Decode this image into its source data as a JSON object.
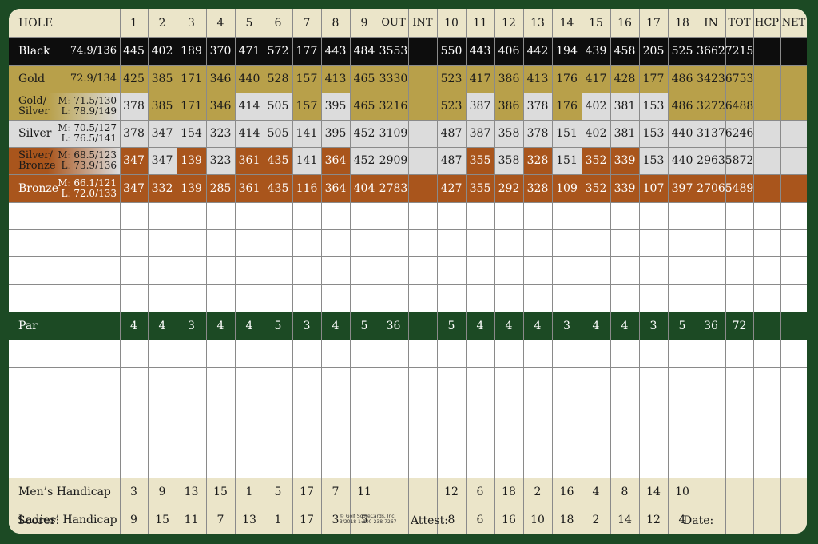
{
  "header": {
    "hole_label": "HOLE",
    "columns": [
      "1",
      "2",
      "3",
      "4",
      "5",
      "6",
      "7",
      "8",
      "9",
      "OUT",
      "INT",
      "10",
      "11",
      "12",
      "13",
      "14",
      "15",
      "16",
      "17",
      "18",
      "IN",
      "TOT",
      "HCP",
      "NET"
    ]
  },
  "colors": {
    "black": "#0d0d0d",
    "gold": "#b8a04a",
    "silver": "#dcdcdc",
    "bronze": "#a9551c",
    "green": "#1c4a24",
    "beige": "#ebe5c9",
    "cream": "#f4f0dc"
  },
  "tees": [
    {
      "name": "Black",
      "rating1": "74.9/136",
      "rating2": "",
      "scheme": "black",
      "values": [
        "445",
        "402",
        "189",
        "370",
        "471",
        "572",
        "177",
        "443",
        "484",
        "3553",
        "",
        "550",
        "443",
        "406",
        "442",
        "194",
        "439",
        "458",
        "205",
        "525",
        "3662",
        "7215",
        "",
        ""
      ]
    },
    {
      "name": "Gold",
      "rating1": "72.9/134",
      "rating2": "",
      "scheme": "gold",
      "values": [
        "425",
        "385",
        "171",
        "346",
        "440",
        "528",
        "157",
        "413",
        "465",
        "3330",
        "",
        "523",
        "417",
        "386",
        "413",
        "176",
        "417",
        "428",
        "177",
        "486",
        "3423",
        "6753",
        "",
        ""
      ]
    },
    {
      "name": "Gold/",
      "name2": "Silver",
      "rating1": "M: 71.5/130",
      "rating2": "L: 78.9/149",
      "scheme": "gold-silver",
      "values": [
        "378",
        "385",
        "171",
        "346",
        "414",
        "505",
        "157",
        "395",
        "465",
        "3216",
        "",
        "523",
        "387",
        "386",
        "378",
        "176",
        "402",
        "381",
        "153",
        "486",
        "3272",
        "6488",
        "",
        ""
      ],
      "cellColors": [
        "s",
        "g",
        "g",
        "g",
        "s",
        "s",
        "g",
        "s",
        "g",
        "g",
        "g",
        "g",
        "s",
        "g",
        "s",
        "g",
        "s",
        "s",
        "s",
        "g",
        "g",
        "g",
        "g",
        "g"
      ]
    },
    {
      "name": "Silver",
      "rating1": "M: 70.5/127",
      "rating2": "L: 76.5/141",
      "scheme": "silver",
      "values": [
        "378",
        "347",
        "154",
        "323",
        "414",
        "505",
        "141",
        "395",
        "452",
        "3109",
        "",
        "487",
        "387",
        "358",
        "378",
        "151",
        "402",
        "381",
        "153",
        "440",
        "3137",
        "6246",
        "",
        ""
      ]
    },
    {
      "name": "Silver/",
      "name2": "Bronze",
      "rating1": "M: 68.5/123",
      "rating2": "L: 73.9/136",
      "scheme": "silver-bronze",
      "values": [
        "347",
        "347",
        "139",
        "323",
        "361",
        "435",
        "141",
        "364",
        "452",
        "2909",
        "",
        "487",
        "355",
        "358",
        "328",
        "151",
        "352",
        "339",
        "153",
        "440",
        "2963",
        "5872",
        "",
        ""
      ],
      "cellColors": [
        "b",
        "s",
        "b",
        "s",
        "b",
        "b",
        "s",
        "b",
        "s",
        "s",
        "s",
        "s",
        "b",
        "s",
        "b",
        "s",
        "b",
        "b",
        "s",
        "s",
        "s",
        "s",
        "s",
        "s"
      ]
    },
    {
      "name": "Bronze",
      "rating1": "M: 66.1/121",
      "rating2": "L: 72.0/133",
      "scheme": "bronze",
      "values": [
        "347",
        "332",
        "139",
        "285",
        "361",
        "435",
        "116",
        "364",
        "404",
        "2783",
        "",
        "427",
        "355",
        "292",
        "328",
        "109",
        "352",
        "339",
        "107",
        "397",
        "2706",
        "5489",
        "",
        ""
      ]
    }
  ],
  "par": {
    "label": "Par",
    "values": [
      "4",
      "4",
      "3",
      "4",
      "4",
      "5",
      "3",
      "4",
      "5",
      "36",
      "",
      "5",
      "4",
      "4",
      "4",
      "3",
      "4",
      "4",
      "3",
      "5",
      "36",
      "72",
      "",
      ""
    ]
  },
  "handicaps": [
    {
      "label": "Men’s Handicap",
      "values": [
        "3",
        "9",
        "13",
        "15",
        "1",
        "5",
        "17",
        "7",
        "11",
        "",
        "",
        "12",
        "6",
        "18",
        "2",
        "16",
        "4",
        "8",
        "14",
        "10",
        "",
        "",
        "",
        ""
      ]
    },
    {
      "label": "Ladies’ Handicap",
      "values": [
        "9",
        "15",
        "11",
        "7",
        "13",
        "1",
        "17",
        "3",
        "5",
        "",
        "",
        "8",
        "6",
        "16",
        "10",
        "18",
        "2",
        "14",
        "12",
        "4",
        "",
        "",
        "",
        ""
      ]
    }
  ],
  "footer": {
    "scorer": "Scorer:",
    "attest": "Attest:",
    "date": "Date:",
    "copyright_line1": "© Golf ScoreCards, Inc.",
    "copyright_line2": "3/2018   1-800-238-7267"
  }
}
